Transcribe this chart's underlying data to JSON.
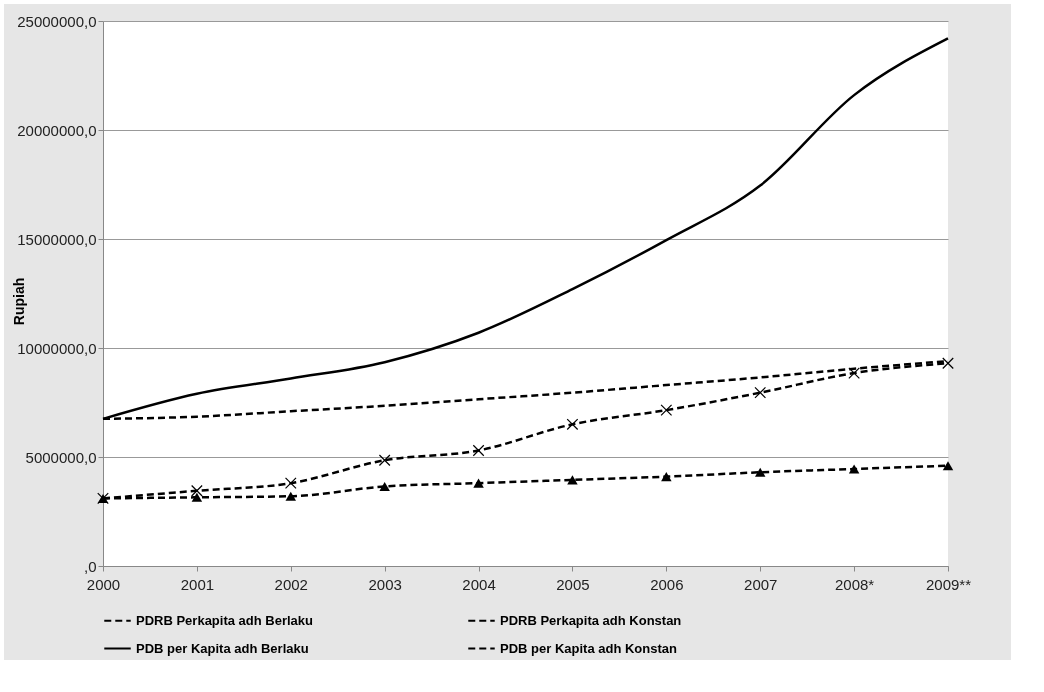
{
  "chart_data": {
    "type": "line",
    "ylabel": "Rupiah",
    "categories": [
      "2000",
      "2001",
      "2002",
      "2003",
      "2004",
      "2005",
      "2006",
      "2007",
      "2008*",
      "2009**"
    ],
    "series": [
      {
        "name": "PDRB Perkapita adh Berlaku",
        "color": "#000000",
        "marker": "cross",
        "line_style": "dashed",
        "values": [
          3100000,
          3450000,
          3800000,
          4850000,
          5300000,
          6500000,
          7150000,
          7950000,
          8850000,
          9300000
        ]
      },
      {
        "name": "PDRB Perkapita adh Konstan",
        "color": "#000000",
        "marker": "triangle",
        "line_style": "dashed",
        "values": [
          3100000,
          3150000,
          3200000,
          3650000,
          3800000,
          3950000,
          4100000,
          4300000,
          4450000,
          4600000
        ]
      },
      {
        "name": "PDB per Kapita adh Berlaku",
        "color": "#000000",
        "marker": "none",
        "line_style": "solid",
        "values": [
          6750000,
          7900000,
          8600000,
          9350000,
          10700000,
          12700000,
          14950000,
          17450000,
          21600000,
          24200000
        ]
      },
      {
        "name": "PDB per Kapita adh Konstan",
        "color": "#000000",
        "marker": "none",
        "line_style": "dashed",
        "values": [
          6750000,
          6850000,
          7100000,
          7350000,
          7650000,
          7950000,
          8300000,
          8650000,
          9050000,
          9400000
        ]
      }
    ],
    "ylim": [
      0,
      25000000
    ],
    "yticks": [
      {
        "value": 0,
        "label": ",0"
      },
      {
        "value": 5000000,
        "label": "5000000,0"
      },
      {
        "value": 10000000,
        "label": "10000000,0"
      },
      {
        "value": 15000000,
        "label": "15000000,0"
      },
      {
        "value": 20000000,
        "label": "20000000,0"
      },
      {
        "value": 25000000,
        "label": "25000000,0"
      }
    ],
    "grid": "y",
    "legend": "bottom"
  }
}
